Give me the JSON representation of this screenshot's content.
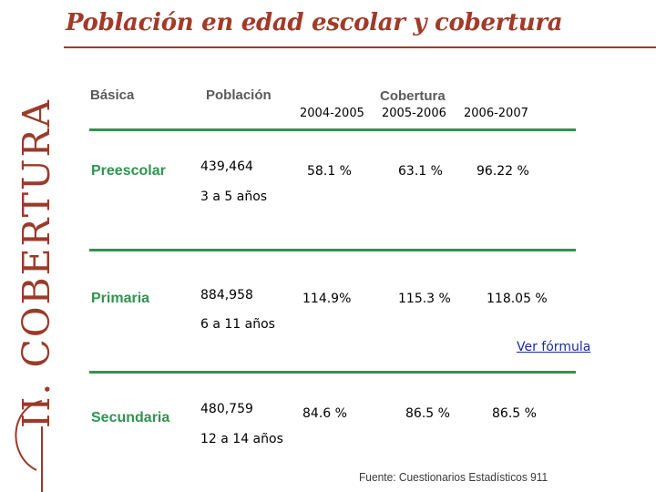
{
  "title": "Población en edad escolar y cobertura",
  "section_label": "II. COBERTURA",
  "headers": {
    "level": "Básica",
    "population": "Población",
    "coverage": "Cobertura",
    "years": [
      "2004-2005",
      "2005-2006",
      "2006-2007"
    ]
  },
  "rows": [
    {
      "level": "Preescolar",
      "population": "439,464",
      "age_range": "3 a 5 años",
      "coverage": [
        "58.1 %",
        "63.1 %",
        "96.22 %"
      ]
    },
    {
      "level": "Primaria",
      "population": "884,958",
      "age_range": "6 a 11 años",
      "coverage": [
        "114.9%",
        "115.3 %",
        "118.05 %"
      ]
    },
    {
      "level": "Secundaria",
      "population": "480,759",
      "age_range": "12 a 14 años",
      "coverage": [
        "84.6 %",
        "86.5 %",
        "86.5 %"
      ]
    }
  ],
  "formula_link": "Ver fórmula",
  "source": "Fuente: Cuestionarios Estadísticos 911",
  "colors": {
    "title": "#a23a28",
    "accent_green": "#2f9450",
    "link": "#1a2a9e"
  }
}
